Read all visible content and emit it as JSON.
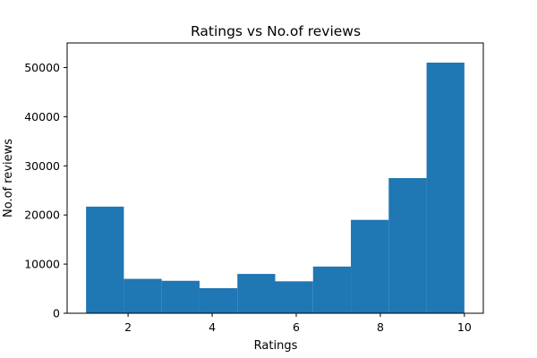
{
  "chart_data": {
    "type": "bar",
    "title": "Ratings vs No.of reviews",
    "xlabel": "Ratings",
    "ylabel": "No.of reviews",
    "bin_edges": [
      1.0,
      1.9,
      2.8,
      3.7,
      4.6,
      5.5,
      6.4,
      7.3,
      8.2,
      9.1,
      10.0
    ],
    "values": [
      21700,
      7000,
      6600,
      5100,
      8000,
      6500,
      9500,
      19000,
      27500,
      51000
    ],
    "xlim": [
      0.55,
      10.45
    ],
    "ylim": [
      0,
      55000
    ],
    "x_ticks": [
      2,
      4,
      6,
      8,
      10
    ],
    "y_ticks": [
      0,
      10000,
      20000,
      30000,
      40000,
      50000
    ],
    "bar_color": "#1f77b4",
    "grid": false,
    "legend": "none"
  }
}
